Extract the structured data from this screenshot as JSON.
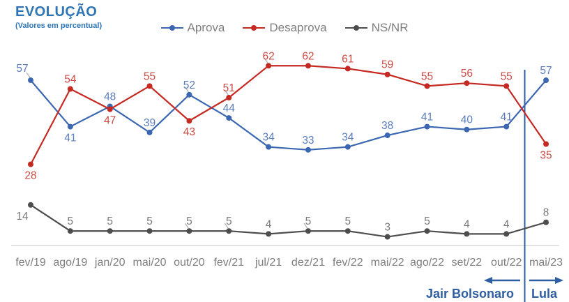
{
  "title": "EVOLUÇÃO",
  "subtitle": "(Valores em percentual)",
  "colors": {
    "title": "#2E75B6",
    "annotation": "#2E5FA3",
    "divider": "#2E5FA3",
    "axis_labels": "#7F7F7F",
    "baseline": "#DADADA",
    "legend_text": "#7F7F7F",
    "leader_line": "#ADADAD"
  },
  "chart_data": {
    "type": "line",
    "title": "EVOLUÇÃO",
    "subtitle": "(Valores em percentual)",
    "categories": [
      "fev/19",
      "ago/19",
      "jan/20",
      "mai/20",
      "out/20",
      "fev/21",
      "jul/21",
      "dez/21",
      "fev/22",
      "mai/22",
      "ago/22",
      "set/22",
      "out/22",
      "mai/23"
    ],
    "series": [
      {
        "name": "Aprova",
        "color": "#3B66B1",
        "label_color": "#5A7CBD",
        "values": [
          57,
          41,
          48,
          39,
          52,
          44,
          34,
          33,
          34,
          38,
          41,
          40,
          41,
          57
        ]
      },
      {
        "name": "Desaprova",
        "color": "#C52A22",
        "label_color": "#CB4B45",
        "values": [
          28,
          54,
          47,
          55,
          43,
          51,
          62,
          62,
          61,
          59,
          55,
          56,
          55,
          35
        ]
      },
      {
        "name": "NS/NR",
        "color": "#4D4D4D",
        "label_color": "#7A7A7A",
        "values": [
          14,
          5,
          5,
          5,
          5,
          5,
          4,
          5,
          5,
          3,
          5,
          4,
          4,
          8
        ]
      }
    ],
    "ylim": [
      0,
      70
    ],
    "grid": false,
    "legend_position": "top-center",
    "divider_after_category": "out/22",
    "annotations": [
      {
        "label": "Jair Bolsonaro",
        "arrow": "left",
        "side": "before-divider"
      },
      {
        "label": "Lula",
        "arrow": "right",
        "side": "after-divider"
      }
    ]
  }
}
